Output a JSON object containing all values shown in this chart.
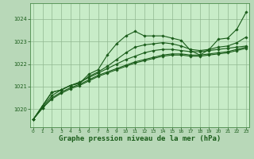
{
  "background_color": "#b8d8b8",
  "plot_bg_color": "#c8ecc8",
  "grid_color": "#90b890",
  "line_color": "#1a5c1a",
  "marker_color": "#1a5c1a",
  "xlabel": "Graphe pression niveau de la mer (hPa)",
  "xlabel_fontsize": 6.5,
  "xticks": [
    0,
    1,
    2,
    3,
    4,
    5,
    6,
    7,
    8,
    9,
    10,
    11,
    12,
    13,
    14,
    15,
    16,
    17,
    18,
    19,
    20,
    21,
    22,
    23
  ],
  "yticks": [
    1020,
    1021,
    1022,
    1023,
    1024
  ],
  "ylim": [
    1019.2,
    1024.7
  ],
  "xlim": [
    -0.3,
    23.3
  ],
  "series": [
    [
      1019.55,
      1020.15,
      1020.75,
      1020.85,
      1021.05,
      1021.15,
      1021.55,
      1021.75,
      1022.4,
      1022.9,
      1023.25,
      1023.45,
      1023.25,
      1023.25,
      1023.25,
      1023.15,
      1023.05,
      1022.6,
      1022.4,
      1022.65,
      1023.1,
      1023.15,
      1023.55,
      1024.3
    ],
    [
      1019.55,
      1020.15,
      1020.75,
      1020.85,
      1021.05,
      1021.15,
      1021.45,
      1021.65,
      1021.9,
      1022.2,
      1022.5,
      1022.75,
      1022.85,
      1022.9,
      1022.95,
      1022.9,
      1022.8,
      1022.65,
      1022.6,
      1022.65,
      1022.75,
      1022.8,
      1022.95,
      1023.2
    ],
    [
      1019.55,
      1020.1,
      1020.6,
      1020.85,
      1021.05,
      1021.2,
      1021.4,
      1021.6,
      1021.8,
      1022.0,
      1022.2,
      1022.35,
      1022.5,
      1022.6,
      1022.65,
      1022.65,
      1022.6,
      1022.55,
      1022.55,
      1022.6,
      1022.65,
      1022.7,
      1022.75,
      1022.8
    ],
    [
      1019.55,
      1020.05,
      1020.5,
      1020.75,
      1020.95,
      1021.1,
      1021.3,
      1021.5,
      1021.65,
      1021.8,
      1021.95,
      1022.1,
      1022.2,
      1022.3,
      1022.4,
      1022.45,
      1022.45,
      1022.4,
      1022.4,
      1022.45,
      1022.5,
      1022.55,
      1022.65,
      1022.75
    ],
    [
      1019.55,
      1020.05,
      1020.45,
      1020.7,
      1020.9,
      1021.05,
      1021.25,
      1021.45,
      1021.6,
      1021.75,
      1021.9,
      1022.05,
      1022.15,
      1022.25,
      1022.35,
      1022.4,
      1022.4,
      1022.35,
      1022.35,
      1022.4,
      1022.45,
      1022.5,
      1022.6,
      1022.7
    ]
  ]
}
